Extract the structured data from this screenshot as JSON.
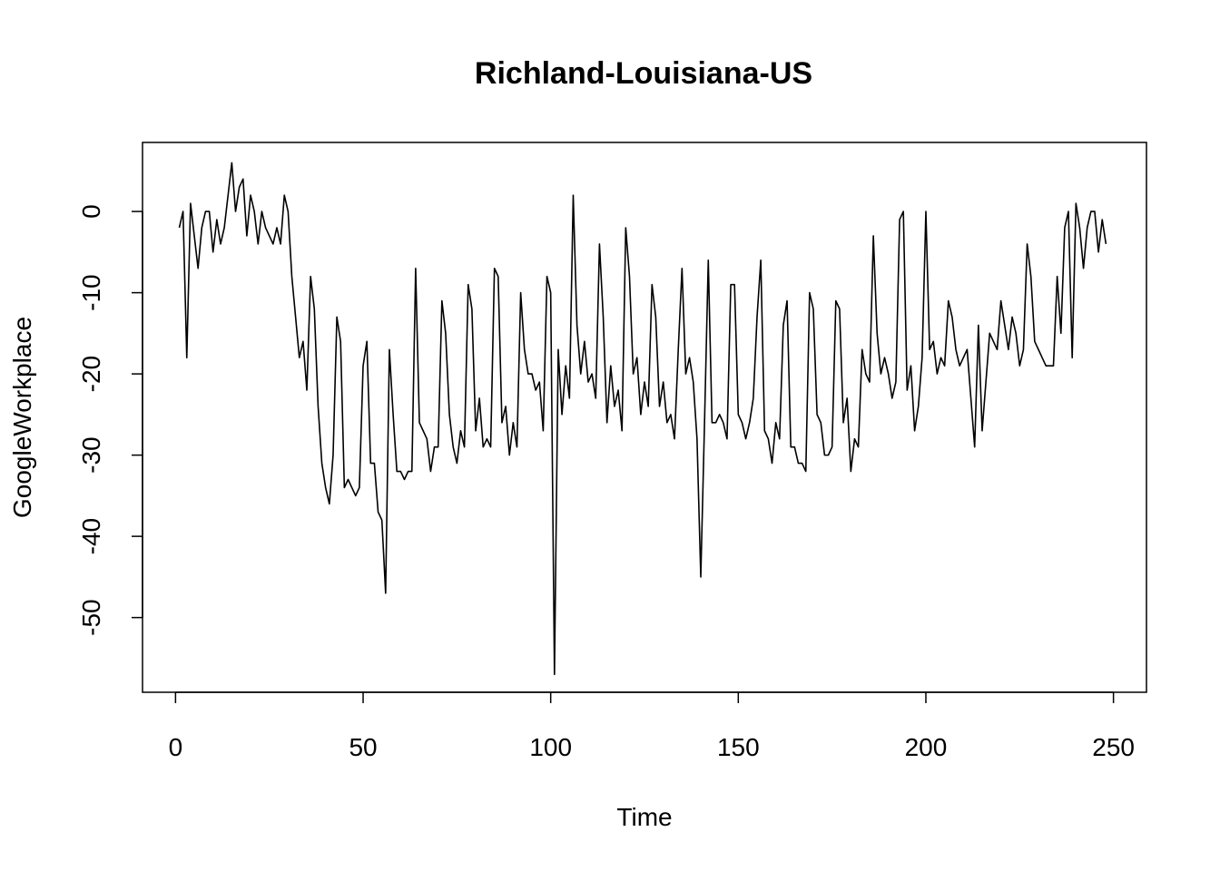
{
  "chart_data": {
    "type": "line",
    "title": "Richland-Louisiana-US",
    "xlabel": "Time",
    "ylabel": "GoogleWorkplace",
    "xlim": [
      -8.8,
      258.8
    ],
    "ylim": [
      -59.2,
      8.5
    ],
    "x_ticks": [
      0,
      50,
      100,
      150,
      200,
      250
    ],
    "y_ticks": [
      0,
      -10,
      -20,
      -30,
      -40,
      -50
    ],
    "grid": false,
    "legend": "none",
    "line_color": "#000000",
    "x_start": 1,
    "values": [
      -2,
      0,
      -18,
      1,
      -3,
      -7,
      -2,
      0,
      0,
      -5,
      -1,
      -4,
      -2,
      2,
      6,
      0,
      3,
      4,
      -3,
      2,
      0,
      -4,
      0,
      -2,
      -3,
      -4,
      -2,
      -4,
      2,
      0,
      -8,
      -13,
      -18,
      -16,
      -22,
      -8,
      -12,
      -24,
      -31,
      -34,
      -36,
      -30,
      -13,
      -16,
      -34,
      -33,
      -34,
      -35,
      -34,
      -19,
      -16,
      -31,
      -31,
      -37,
      -38,
      -47,
      -17,
      -25,
      -32,
      -32,
      -33,
      -32,
      -32,
      -7,
      -26,
      -27,
      -28,
      -32,
      -29,
      -29,
      -11,
      -15,
      -25,
      -29,
      -31,
      -27,
      -29,
      -9,
      -12,
      -27,
      -23,
      -29,
      -28,
      -29,
      -7,
      -8,
      -26,
      -24,
      -30,
      -26,
      -29,
      -10,
      -17,
      -20,
      -20,
      -22,
      -21,
      -27,
      -8,
      -10,
      -57,
      -17,
      -25,
      -19,
      -23,
      2,
      -14,
      -20,
      -16,
      -21,
      -20,
      -23,
      -4,
      -13,
      -26,
      -19,
      -24,
      -22,
      -27,
      -2,
      -8,
      -20,
      -18,
      -25,
      -21,
      -24,
      -9,
      -13,
      -24,
      -21,
      -26,
      -25,
      -28,
      -17,
      -7,
      -20,
      -18,
      -21,
      -28,
      -45,
      -26,
      -6,
      -26,
      -26,
      -25,
      -26,
      -28,
      -9,
      -9,
      -25,
      -26,
      -28,
      -26,
      -23,
      -13,
      -6,
      -27,
      -28,
      -31,
      -26,
      -28,
      -14,
      -11,
      -29,
      -29,
      -31,
      -31,
      -32,
      -10,
      -12,
      -25,
      -26,
      -30,
      -30,
      -29,
      -11,
      -12,
      -26,
      -23,
      -32,
      -28,
      -29,
      -17,
      -20,
      -21,
      -3,
      -15,
      -20,
      -18,
      -20,
      -23,
      -21,
      -1,
      0,
      -22,
      -19,
      -27,
      -24,
      -18,
      0,
      -17,
      -16,
      -20,
      -18,
      -19,
      -11,
      -13,
      -17,
      -19,
      -18,
      -17,
      -23,
      -29,
      -14,
      -27,
      -21,
      -15,
      -16,
      -17,
      -11,
      -14,
      -17,
      -13,
      -15,
      -19,
      -17,
      -4,
      -8,
      -16,
      -17,
      -18,
      -19,
      -19,
      -19,
      -8,
      -15,
      -2,
      0,
      -18,
      1,
      -2,
      -7,
      -2,
      0,
      0,
      -5,
      -1,
      -4
    ]
  }
}
